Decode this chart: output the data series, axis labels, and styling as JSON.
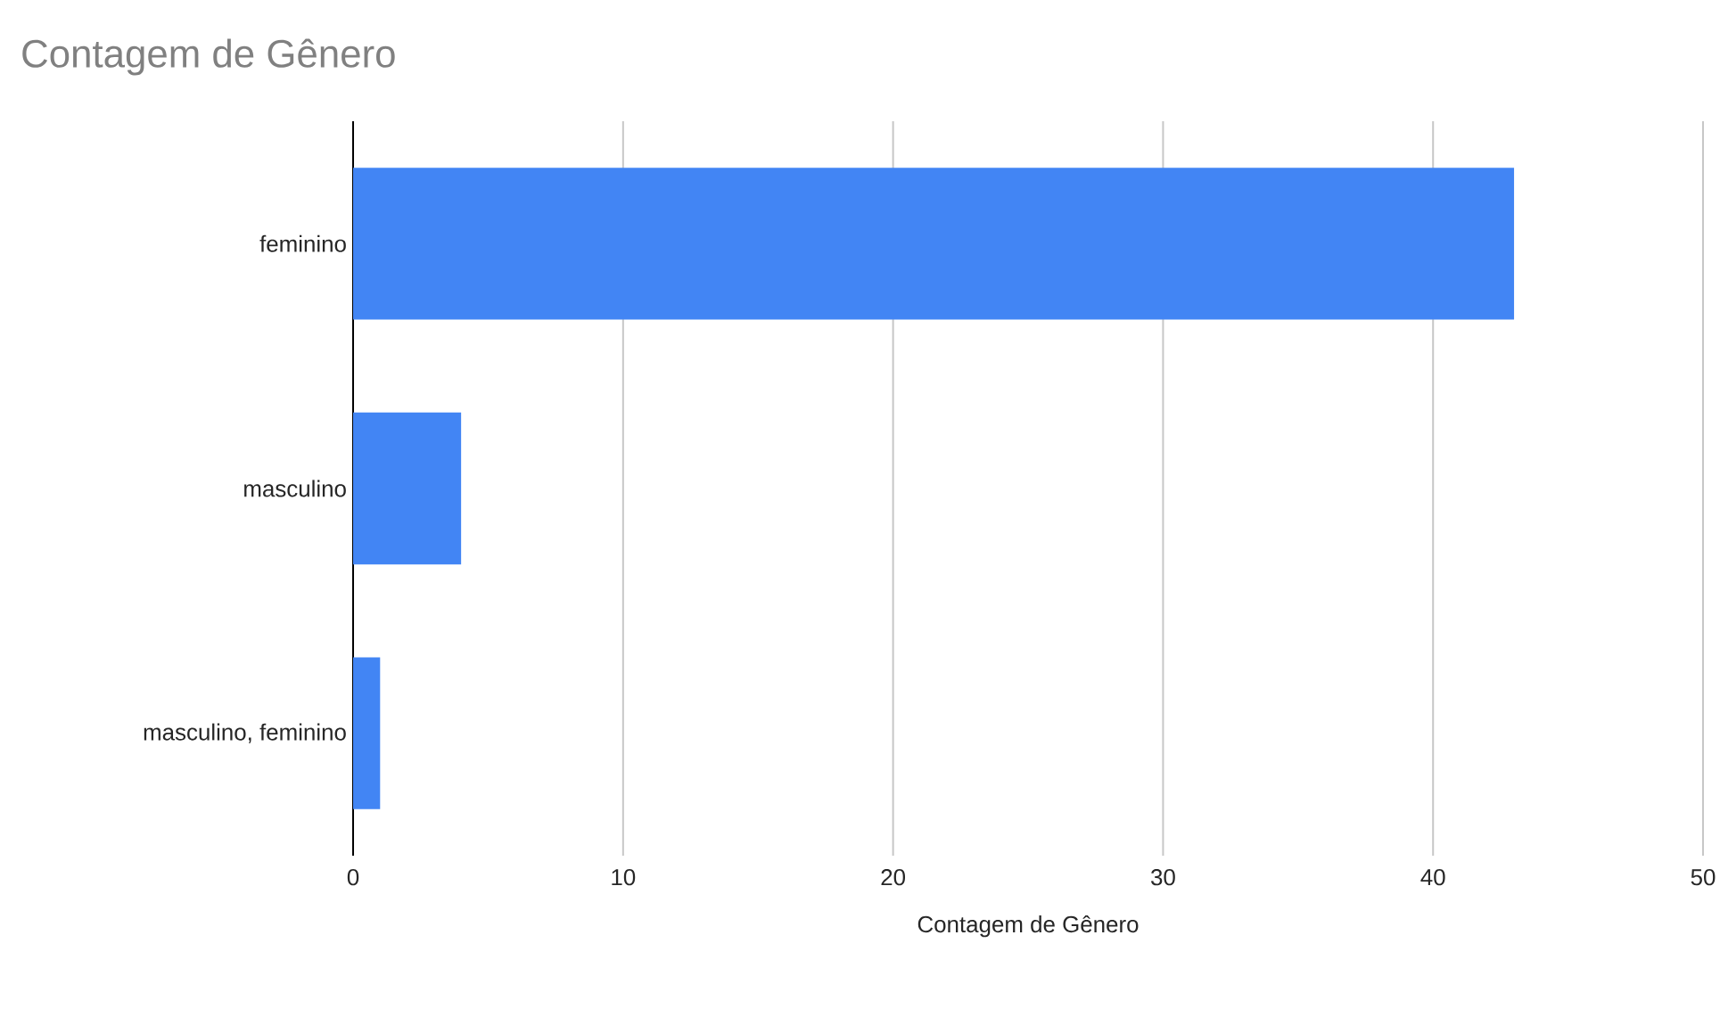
{
  "chart_data": {
    "type": "bar",
    "orientation": "horizontal",
    "title": "Contagem de Gênero",
    "xlabel": "Contagem de Gênero",
    "categories": [
      "feminino",
      "masculino",
      "masculino, feminino"
    ],
    "values": [
      43,
      4,
      1
    ],
    "color": "#4285f4",
    "xlim": [
      0,
      50
    ],
    "xticks": [
      0,
      10,
      20,
      30,
      40,
      50
    ],
    "grid": "x"
  }
}
